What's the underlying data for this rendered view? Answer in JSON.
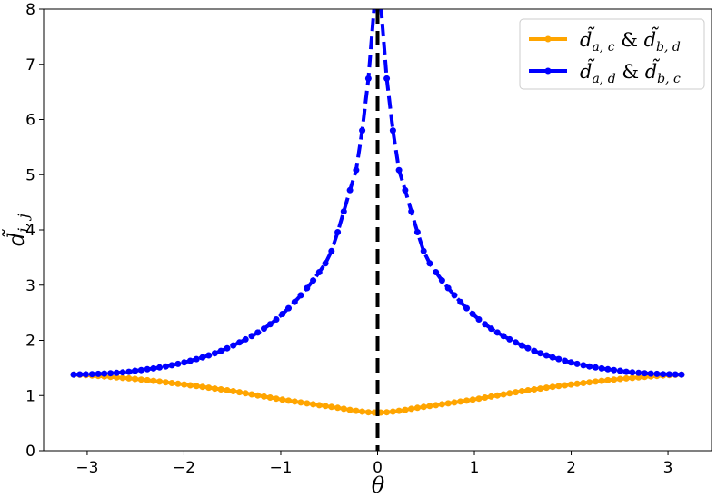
{
  "chart_data": {
    "type": "line",
    "title": "",
    "xlabel": "θ",
    "ylabel": "d̃i,j",
    "xlim": [
      -3.45,
      3.45
    ],
    "ylim": [
      0,
      8
    ],
    "xticks": [
      -3,
      -2,
      -1,
      0,
      1,
      2,
      3
    ],
    "xtick_labels": [
      "−3",
      "−2",
      "−1",
      "0",
      "1",
      "2",
      "3"
    ],
    "yticks": [
      0,
      1,
      2,
      3,
      4,
      5,
      6,
      7,
      8
    ],
    "ytick_labels": [
      "0",
      "1",
      "2",
      "3",
      "4",
      "5",
      "6",
      "7",
      "8"
    ],
    "grid": false,
    "legend_position": "top-right",
    "series": [
      {
        "name": "d̃a,c & d̃b,d",
        "color": "#ffa500",
        "line_style": "solid",
        "marker": "circle",
        "x": [
          -3.14,
          -2.5,
          -2.0,
          -1.5,
          -1.0,
          -0.5,
          0.0,
          0.5,
          1.0,
          1.5,
          2.0,
          2.5,
          3.14
        ],
        "y": [
          1.38,
          1.3,
          1.2,
          1.08,
          0.93,
          0.8,
          0.69,
          0.8,
          0.93,
          1.08,
          1.2,
          1.3,
          1.38
        ]
      },
      {
        "name": "d̃a,d & d̃b,c",
        "color": "#0000ff",
        "line_style": "dashed",
        "marker": "circle",
        "x": [
          -3.14,
          -2.8,
          -2.5,
          -2.0,
          -1.5,
          -1.0,
          -0.5,
          -0.2,
          -0.1,
          -0.05,
          0.05,
          0.1,
          0.2,
          0.5,
          1.0,
          1.5,
          2.0,
          2.5,
          2.8,
          3.14
        ],
        "y": [
          1.38,
          1.4,
          1.45,
          1.6,
          1.9,
          2.45,
          3.5,
          5.2,
          6.6,
          8.0,
          8.0,
          6.6,
          5.2,
          3.5,
          2.45,
          1.9,
          1.6,
          1.45,
          1.4,
          1.38
        ]
      }
    ],
    "vlines": [
      {
        "x": 0,
        "color": "#000000",
        "line_style": "dashed"
      }
    ]
  },
  "legend": {
    "entry1_base": "d̃",
    "entry1_sub1": "a, c",
    "entry1_amp": " & ",
    "entry1_base2": "d̃",
    "entry1_sub2": "b, d",
    "entry2_base": "d̃",
    "entry2_sub1": "a, d",
    "entry2_amp": " & ",
    "entry2_base2": "d̃",
    "entry2_sub2": "b, c"
  },
  "labels": {
    "x_axis": "θ",
    "y_axis_base": "d̃",
    "y_axis_sub": "i, j"
  }
}
